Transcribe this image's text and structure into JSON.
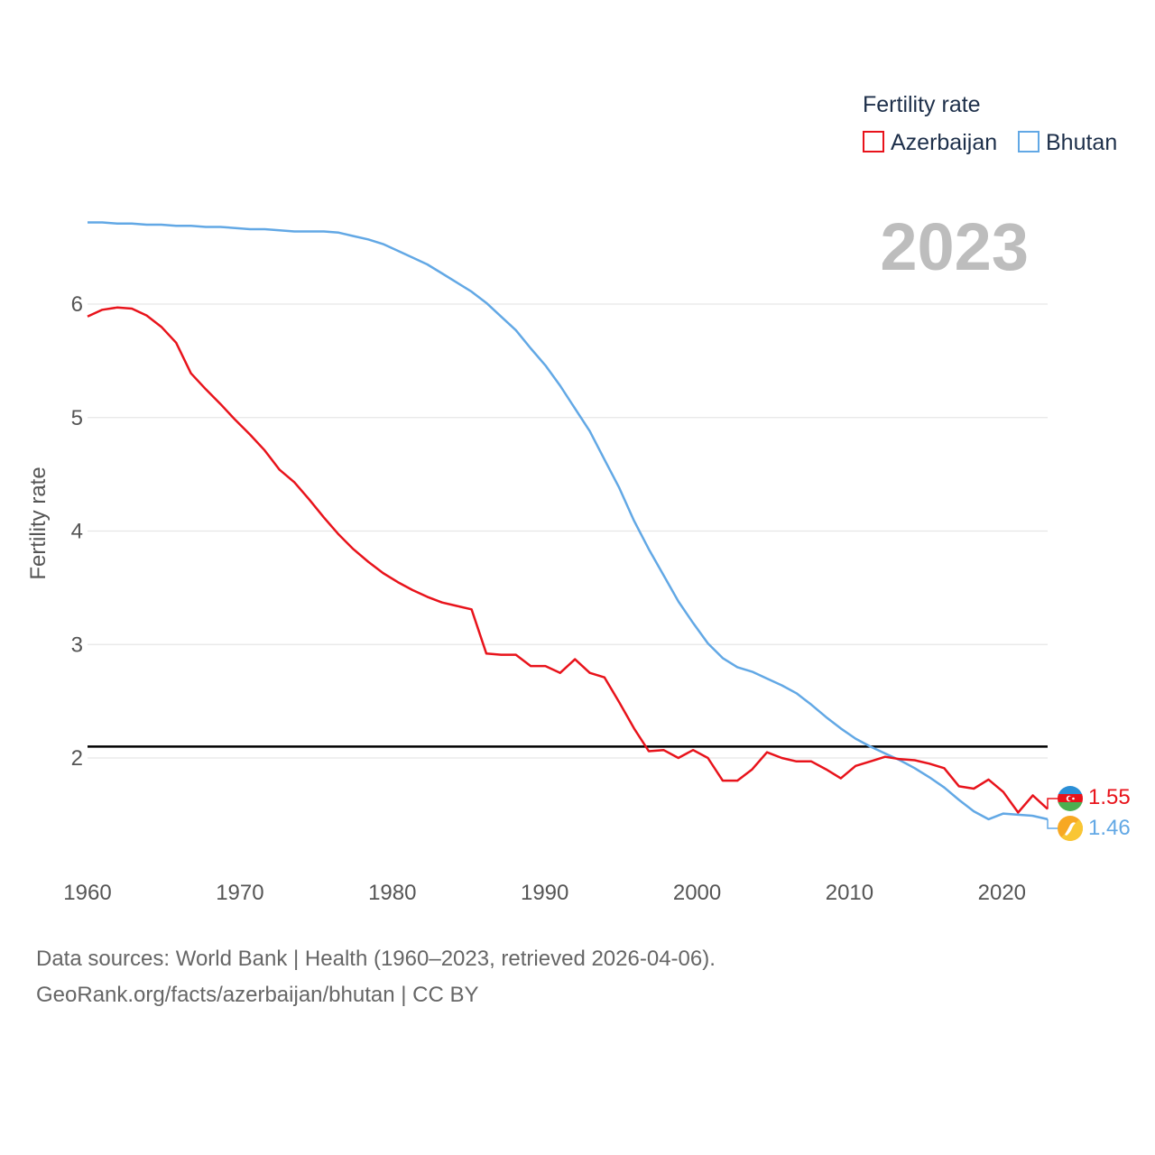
{
  "chart_data": {
    "type": "line",
    "title": "Fertility rate",
    "year_label": "2023",
    "xlabel": "",
    "ylabel": "Fertility rate",
    "xlim": [
      1960,
      2023
    ],
    "ylim": [
      1.0,
      7.0
    ],
    "x_ticks": [
      1960,
      1970,
      1980,
      1990,
      2000,
      2010,
      2020
    ],
    "y_ticks": [
      2,
      3,
      4,
      5,
      6
    ],
    "reference_line": 2.1,
    "series": [
      {
        "name": "Azerbaijan",
        "color": "#e8131b",
        "icon": "azerbaijan-flag-icon",
        "end_label": "1.55",
        "values": [
          5.89,
          5.95,
          5.97,
          5.96,
          5.9,
          5.8,
          5.66,
          5.39,
          5.25,
          5.12,
          4.98,
          4.85,
          4.71,
          4.54,
          4.43,
          4.28,
          4.12,
          3.97,
          3.84,
          3.73,
          3.63,
          3.55,
          3.48,
          3.42,
          3.37,
          3.34,
          3.31,
          2.92,
          2.91,
          2.91,
          2.81,
          2.81,
          2.75,
          2.87,
          2.75,
          2.71,
          2.49,
          2.26,
          2.06,
          2.07,
          2.0,
          2.07,
          2.0,
          1.8,
          1.8,
          1.9,
          2.05,
          2.0,
          1.97,
          1.97,
          1.9,
          1.82,
          1.93,
          1.97,
          2.01,
          1.99,
          1.98,
          1.95,
          1.91,
          1.75,
          1.73,
          1.81,
          1.7,
          1.52,
          1.67,
          1.55
        ]
      },
      {
        "name": "Bhutan",
        "color": "#62a8e5",
        "icon": "bhutan-flag-icon",
        "end_label": "1.46",
        "values": [
          6.72,
          6.72,
          6.71,
          6.71,
          6.7,
          6.7,
          6.69,
          6.69,
          6.68,
          6.68,
          6.67,
          6.66,
          6.66,
          6.65,
          6.64,
          6.64,
          6.64,
          6.63,
          6.6,
          6.57,
          6.53,
          6.47,
          6.41,
          6.35,
          6.27,
          6.19,
          6.11,
          6.01,
          5.89,
          5.77,
          5.61,
          5.46,
          5.28,
          5.08,
          4.88,
          4.63,
          4.38,
          4.09,
          3.84,
          3.61,
          3.38,
          3.19,
          3.01,
          2.88,
          2.8,
          2.76,
          2.7,
          2.64,
          2.57,
          2.47,
          2.36,
          2.26,
          2.17,
          2.1,
          2.04,
          1.98,
          1.91,
          1.83,
          1.74,
          1.63,
          1.53,
          1.46,
          1.51,
          1.5,
          1.49,
          1.46
        ]
      }
    ]
  },
  "legend": {
    "title": "Fertility rate",
    "items": [
      "Azerbaijan",
      "Bhutan"
    ]
  },
  "footer": {
    "line1": "Data sources: World Bank | Health (1960–2023, retrieved 2026-04-06).",
    "line2": "GeoRank.org/facts/azerbaijan/bhutan | CC BY"
  }
}
